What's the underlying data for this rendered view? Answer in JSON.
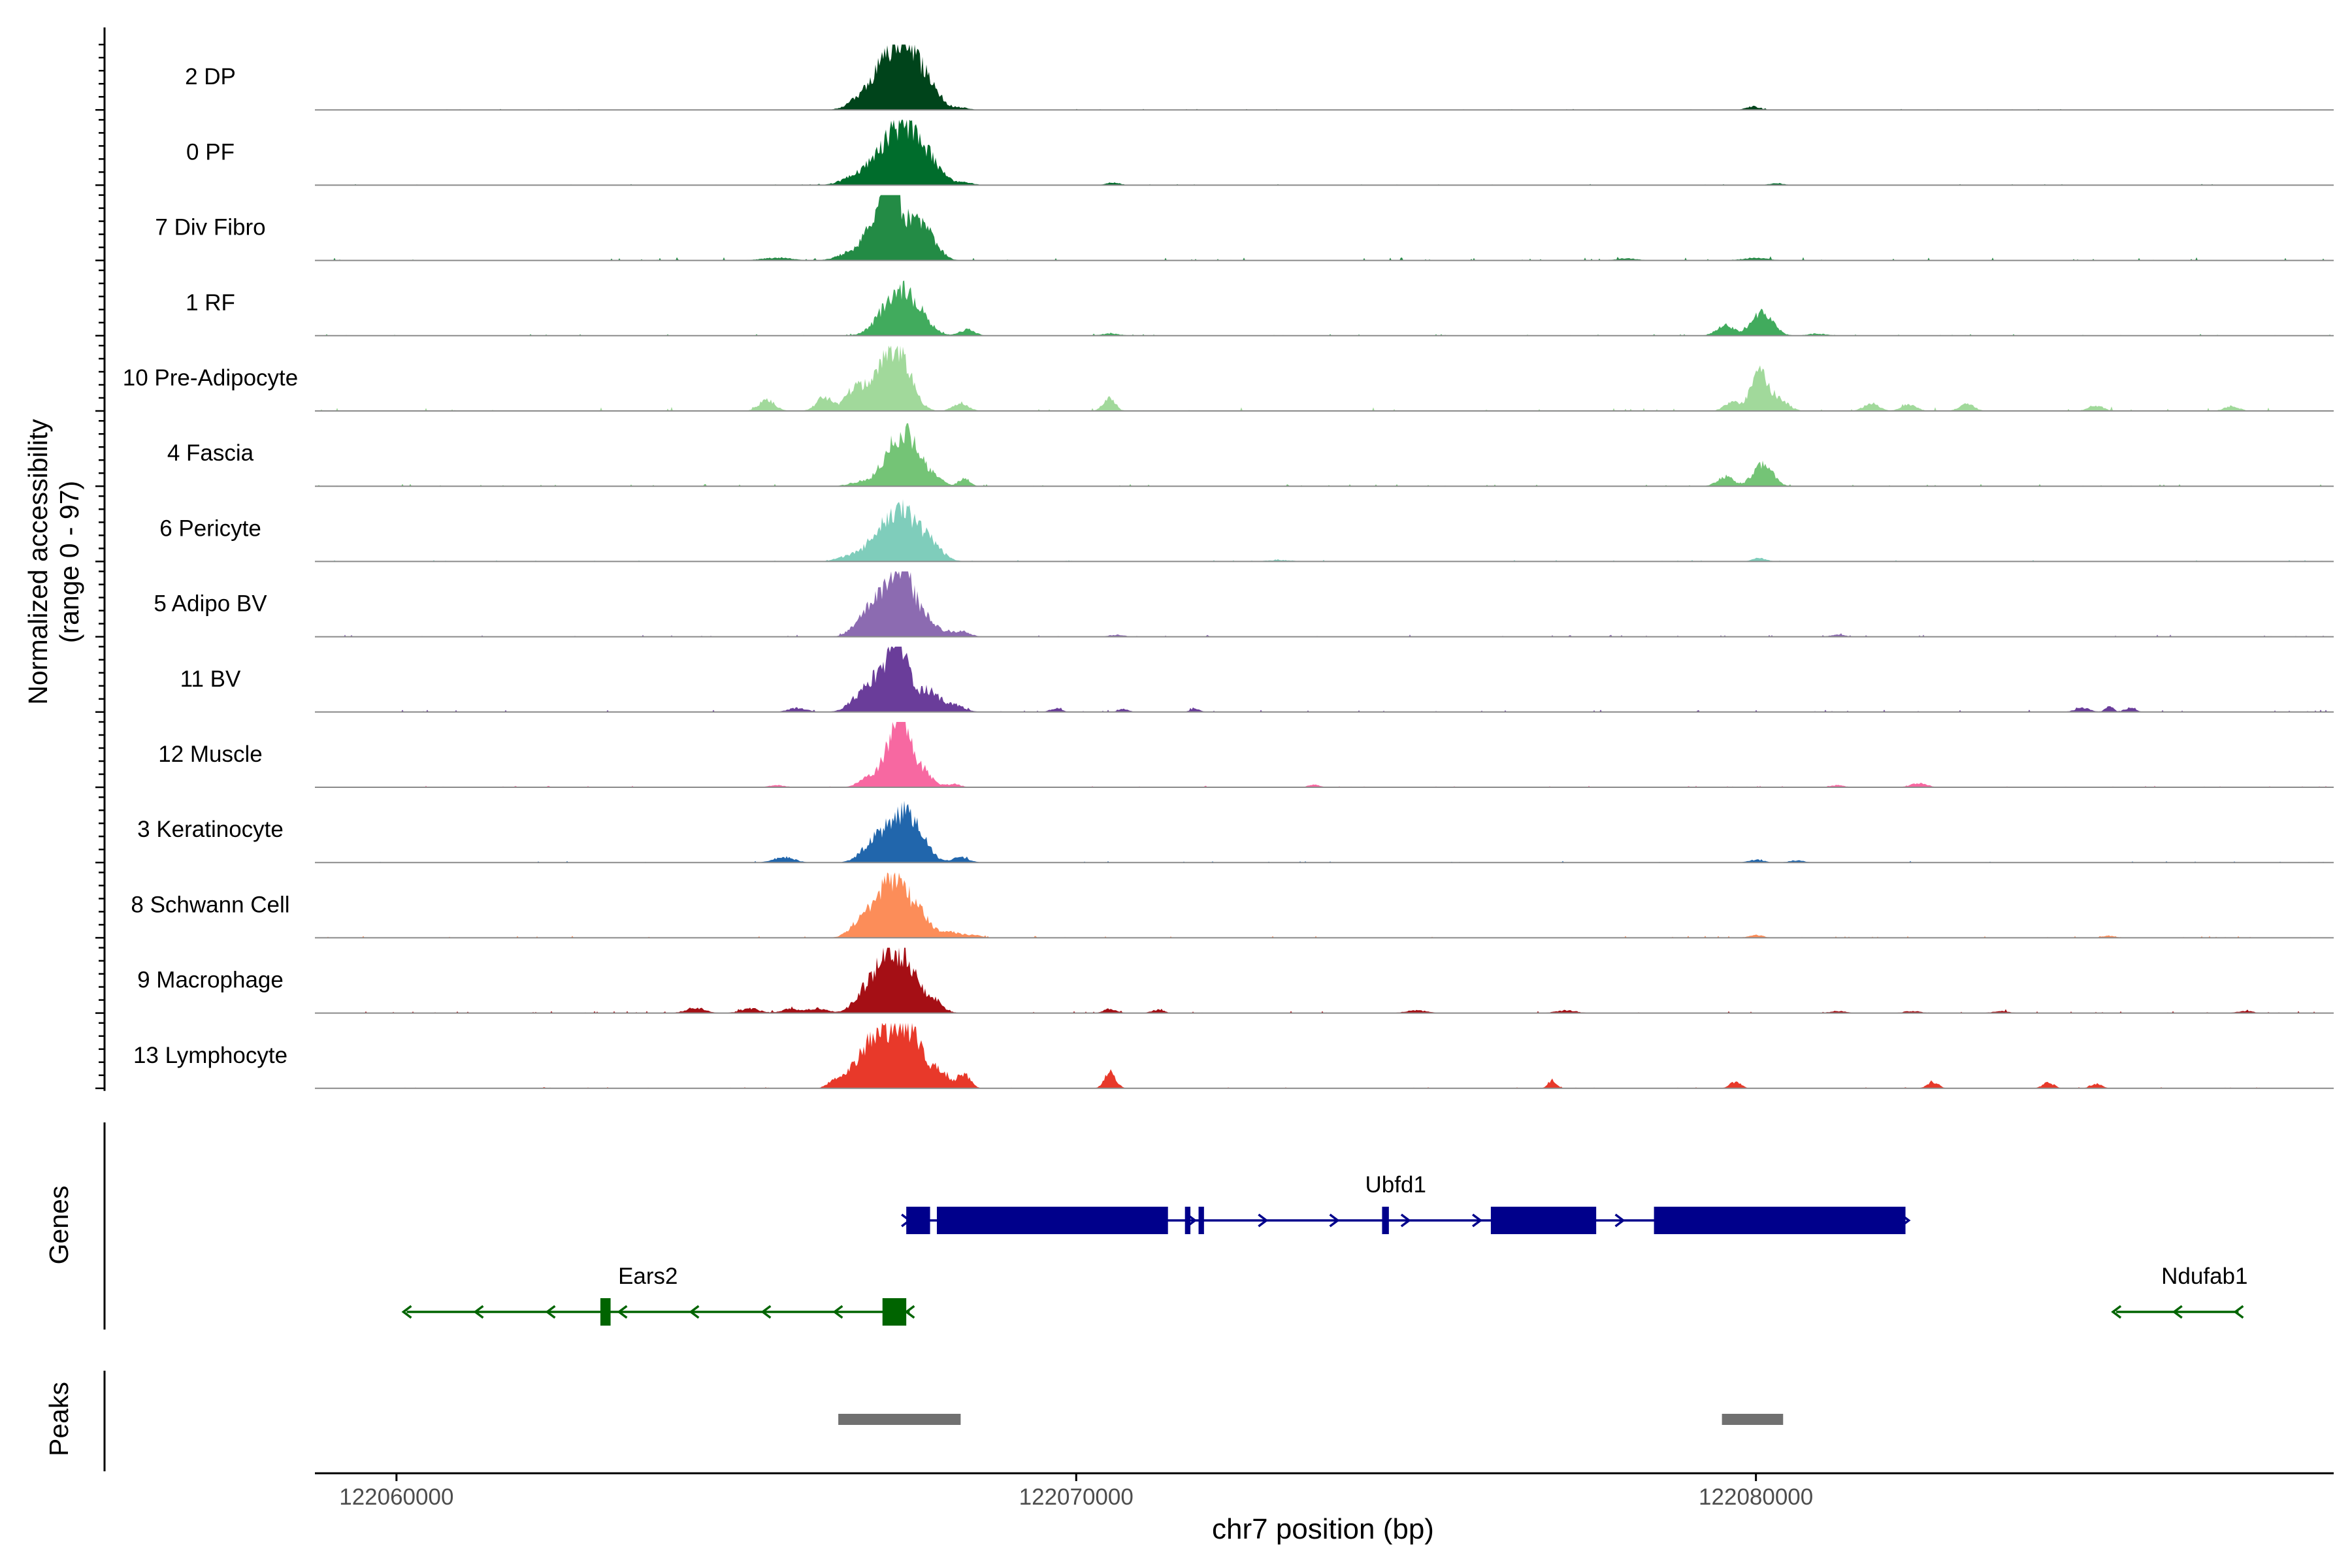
{
  "chart_data": {
    "type": "area",
    "title": "",
    "ylabel_line1": "Normalized accessibility",
    "ylabel_line2": "(range 0 - 97)",
    "xlabel": "chr7 position (bp)",
    "xlim": [
      122058800,
      122088500
    ],
    "xticks": [
      {
        "value": 122060000,
        "label": "122060000"
      },
      {
        "value": 122070000,
        "label": "122070000"
      },
      {
        "value": 122080000,
        "label": "122080000"
      }
    ],
    "yrange": [
      0,
      97
    ],
    "series": [
      {
        "name": "2 DP",
        "color": "#00441b",
        "peaks": [
          [
            122067300,
            72,
            280
          ],
          [
            122067550,
            40,
            260
          ],
          [
            122067850,
            18,
            140
          ],
          [
            122066800,
            8,
            160
          ],
          [
            122068300,
            3,
            120
          ],
          [
            122079950,
            5,
            100
          ]
        ],
        "noise": 0.5,
        "seed": 11
      },
      {
        "name": "0 PF",
        "color": "#006d2c",
        "peaks": [
          [
            122067300,
            60,
            300
          ],
          [
            122067580,
            44,
            230
          ],
          [
            122067900,
            14,
            170
          ],
          [
            122066700,
            7,
            180
          ],
          [
            122068350,
            4,
            130
          ],
          [
            122070550,
            4,
            100
          ],
          [
            122080300,
            3,
            100
          ]
        ],
        "noise": 0.6,
        "seed": 23
      },
      {
        "name": "7 Div Fibro",
        "color": "#238b45",
        "peaks": [
          [
            122067180,
            92,
            70
          ],
          [
            122067320,
            72,
            80
          ],
          [
            122067050,
            50,
            160
          ],
          [
            122067550,
            58,
            190
          ],
          [
            122067850,
            24,
            150
          ],
          [
            122066700,
            12,
            190
          ],
          [
            122065600,
            4,
            220
          ],
          [
            122080000,
            4,
            180
          ],
          [
            122078100,
            3,
            150
          ]
        ],
        "noise": 1.6,
        "seed": 37
      },
      {
        "name": "1 RF",
        "color": "#41ab5d",
        "peaks": [
          [
            122067350,
            58,
            230
          ],
          [
            122067650,
            26,
            190
          ],
          [
            122068400,
            9,
            110
          ],
          [
            122080100,
            36,
            150
          ],
          [
            122079550,
            16,
            130
          ],
          [
            122070500,
            3,
            140
          ],
          [
            122080900,
            3,
            140
          ]
        ],
        "noise": 0.9,
        "seed": 41
      },
      {
        "name": "10 Pre-Adipocyte",
        "color": "#a1d99b",
        "peaks": [
          [
            122067400,
            74,
            180
          ],
          [
            122067150,
            44,
            200
          ],
          [
            122066750,
            32,
            140
          ],
          [
            122066300,
            20,
            120
          ],
          [
            122065450,
            16,
            120
          ],
          [
            122068300,
            12,
            110
          ],
          [
            122070480,
            18,
            90
          ],
          [
            122080050,
            62,
            120
          ],
          [
            122079650,
            14,
            110
          ],
          [
            122080350,
            16,
            130
          ],
          [
            122081700,
            12,
            110
          ],
          [
            122082250,
            10,
            110
          ],
          [
            122083100,
            10,
            110
          ],
          [
            122085000,
            8,
            110
          ],
          [
            122087000,
            7,
            110
          ]
        ],
        "noise": 2.0,
        "seed": 53
      },
      {
        "name": "4 Fascia",
        "color": "#74c476",
        "peaks": [
          [
            122067350,
            62,
            200
          ],
          [
            122067600,
            38,
            150
          ],
          [
            122067900,
            14,
            130
          ],
          [
            122068350,
            12,
            80
          ],
          [
            122080100,
            34,
            140
          ],
          [
            122079550,
            14,
            120
          ],
          [
            122066800,
            6,
            150
          ]
        ],
        "noise": 1.1,
        "seed": 67
      },
      {
        "name": "6 Pericyte",
        "color": "#7fcdbb",
        "peaks": [
          [
            122067250,
            50,
            280
          ],
          [
            122067550,
            40,
            230
          ],
          [
            122067900,
            14,
            160
          ],
          [
            122066600,
            5,
            150
          ],
          [
            122080050,
            5,
            100
          ],
          [
            122073000,
            2,
            200
          ]
        ],
        "noise": 0.8,
        "seed": 71
      },
      {
        "name": "5 Adipo BV",
        "color": "#8c6bb1",
        "peaks": [
          [
            122067450,
            84,
            160
          ],
          [
            122067200,
            48,
            200
          ],
          [
            122066900,
            24,
            170
          ],
          [
            122067800,
            24,
            170
          ],
          [
            122068300,
            8,
            130
          ],
          [
            122070600,
            3,
            110
          ],
          [
            122081200,
            3,
            110
          ]
        ],
        "noise": 1.1,
        "seed": 83
      },
      {
        "name": "11 BV",
        "color": "#6a3d9a",
        "peaks": [
          [
            122067400,
            84,
            130
          ],
          [
            122067150,
            46,
            180
          ],
          [
            122066850,
            22,
            180
          ],
          [
            122067800,
            32,
            170
          ],
          [
            122068200,
            10,
            150
          ],
          [
            122065900,
            6,
            130
          ],
          [
            122069700,
            6,
            80
          ],
          [
            122070700,
            5,
            70
          ],
          [
            122071750,
            5,
            70
          ],
          [
            122084800,
            6,
            110
          ],
          [
            122085200,
            8,
            60
          ],
          [
            122085500,
            6,
            80
          ]
        ],
        "noise": 1.2,
        "seed": 97
      },
      {
        "name": "12 Muscle",
        "color": "#f768a1",
        "peaks": [
          [
            122067450,
            90,
            100
          ],
          [
            122067250,
            55,
            140
          ],
          [
            122067700,
            30,
            150
          ],
          [
            122066900,
            12,
            120
          ],
          [
            122068200,
            5,
            100
          ],
          [
            122065600,
            3,
            120
          ],
          [
            122073500,
            4,
            80
          ],
          [
            122082400,
            6,
            120
          ],
          [
            122081200,
            3,
            100
          ]
        ],
        "noise": 0.8,
        "seed": 101
      },
      {
        "name": "3 Keratinocyte",
        "color": "#2166ac",
        "peaks": [
          [
            122067400,
            60,
            220
          ],
          [
            122067650,
            30,
            170
          ],
          [
            122067000,
            24,
            170
          ],
          [
            122065700,
            8,
            150
          ],
          [
            122068300,
            8,
            120
          ],
          [
            122080000,
            4,
            110
          ],
          [
            122080600,
            3,
            110
          ]
        ],
        "noise": 0.8,
        "seed": 113
      },
      {
        "name": "8 Schwann Cell",
        "color": "#fc8d59",
        "peaks": [
          [
            122067350,
            66,
            180
          ],
          [
            122067100,
            40,
            200
          ],
          [
            122067700,
            34,
            170
          ],
          [
            122066800,
            14,
            150
          ],
          [
            122068200,
            8,
            130
          ],
          [
            122068500,
            4,
            100
          ],
          [
            122080000,
            4,
            110
          ],
          [
            122085200,
            3,
            100
          ]
        ],
        "noise": 1.0,
        "seed": 127
      },
      {
        "name": "9 Macrophage",
        "color": "#a50f15",
        "peaks": [
          [
            122067200,
            82,
            140
          ],
          [
            122067500,
            70,
            150
          ],
          [
            122066900,
            34,
            160
          ],
          [
            122067850,
            22,
            150
          ],
          [
            122064400,
            8,
            140
          ],
          [
            122065200,
            7,
            140
          ],
          [
            122065800,
            6,
            140
          ],
          [
            122066200,
            7,
            140
          ],
          [
            122070500,
            6,
            100
          ],
          [
            122071200,
            5,
            90
          ],
          [
            122075000,
            4,
            150
          ],
          [
            122077200,
            4,
            150
          ],
          [
            122081200,
            3,
            120
          ],
          [
            122082300,
            3,
            120
          ],
          [
            122083600,
            3,
            120
          ],
          [
            122087200,
            3,
            120
          ]
        ],
        "noise": 1.1,
        "seed": 139
      },
      {
        "name": "13 Lymphocyte",
        "color": "#e8392a",
        "peaks": [
          [
            122067100,
            80,
            140
          ],
          [
            122067400,
            74,
            140
          ],
          [
            122067650,
            60,
            140
          ],
          [
            122066800,
            40,
            150
          ],
          [
            122068000,
            26,
            130
          ],
          [
            122068350,
            22,
            90
          ],
          [
            122066450,
            12,
            100
          ],
          [
            122070500,
            26,
            80
          ],
          [
            122077000,
            12,
            60
          ],
          [
            122079700,
            10,
            80
          ],
          [
            122082600,
            10,
            80
          ],
          [
            122084300,
            9,
            80
          ],
          [
            122085000,
            7,
            80
          ]
        ],
        "noise": 0.6,
        "seed": 151
      }
    ],
    "genes": [
      {
        "name": "Ubfd1",
        "color": "#00008b",
        "strand": "+",
        "row": 1,
        "start": 122067500,
        "end": 122082200,
        "exons": [
          [
            122067500,
            122067850
          ],
          [
            122067950,
            122071350
          ],
          [
            122071600,
            122071680
          ],
          [
            122071800,
            122071880
          ],
          [
            122074500,
            122074600
          ],
          [
            122076100,
            122077650
          ],
          [
            122078500,
            122082200
          ]
        ]
      },
      {
        "name": "Ears2",
        "color": "#006400",
        "strand": "-",
        "row": 2,
        "start": 122060150,
        "end": 122067550,
        "exons": [
          [
            122063000,
            122063150
          ],
          [
            122067150,
            122067500
          ]
        ]
      },
      {
        "name": "Ndufab1",
        "color": "#006400",
        "strand": "-",
        "row": 2,
        "start": 122085300,
        "end": 122087100,
        "exons": []
      }
    ],
    "track_labels": {
      "genes": "Genes",
      "peaks": "Peaks"
    },
    "peaks_regions": [
      {
        "start": 122066500,
        "end": 122068300,
        "color": "#707070"
      },
      {
        "start": 122079500,
        "end": 122080400,
        "color": "#707070"
      }
    ]
  }
}
